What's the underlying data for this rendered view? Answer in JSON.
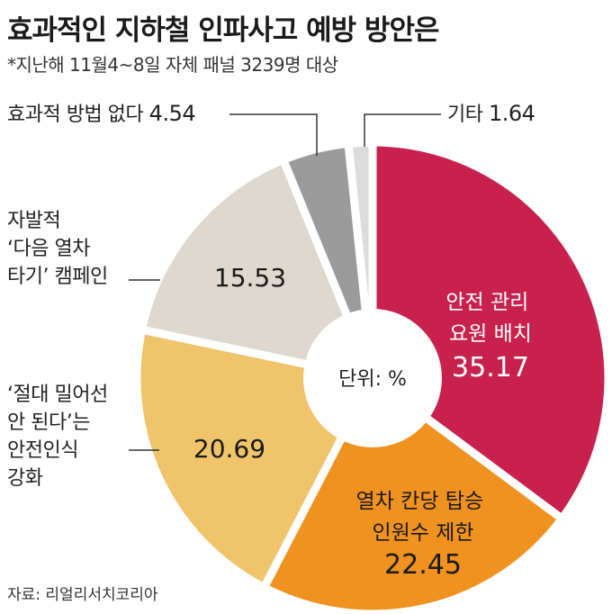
{
  "title": "효과적인 지하철 인파사고 예방 방안은",
  "subtitle": "*지난해 11월4~8일 자체 패널 3239명 대상",
  "source": "자료: 리얼리서치코리아",
  "chart_data": {
    "type": "pie",
    "center_label": "단위: %",
    "slices": [
      {
        "label_lines": [
          "안전 관리",
          "요원 배치"
        ],
        "value": 35.17,
        "value_text": "35.17",
        "color": "#c8214e"
      },
      {
        "label_lines": [
          "열차 칸당 탑승",
          "인원수 제한"
        ],
        "value": 22.45,
        "value_text": "22.45",
        "color": "#f0921f"
      },
      {
        "label_lines": [
          "‘절대 밀어선",
          "안 된다’는",
          "안전인식",
          "강화"
        ],
        "value": 20.69,
        "value_text": "20.69",
        "color": "#f0c46a"
      },
      {
        "label_lines": [
          "자발적",
          "‘다음 열차",
          "타기’ 캠페인"
        ],
        "value": 15.53,
        "value_text": "15.53",
        "color": "#ded8cf"
      },
      {
        "label_lines": [
          "효과적 방법 없다"
        ],
        "value": 4.54,
        "value_text": "4.54",
        "color": "#9b9b9b"
      },
      {
        "label_lines": [
          "기타"
        ],
        "value": 1.64,
        "value_text": "1.64",
        "color": "#dcdcdc"
      }
    ]
  }
}
